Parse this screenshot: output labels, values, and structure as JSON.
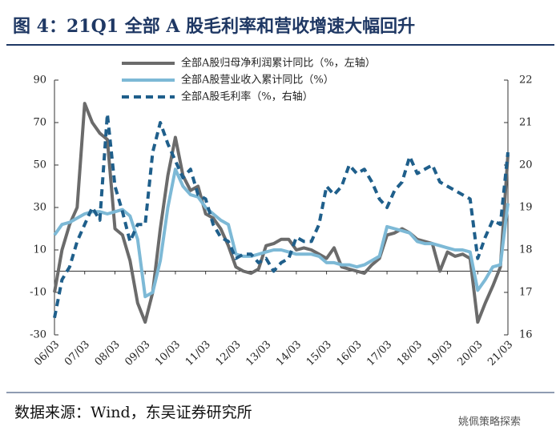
{
  "chart_data": {
    "type": "line",
    "title": "图 4：21Q1 全部 A 股毛利率和营收增速大幅回升",
    "source": "数据来源：Wind，东吴证券研究所",
    "watermark": "姚佩策略探索",
    "categories": [
      "06/03",
      null,
      null,
      null,
      "07/03",
      null,
      null,
      null,
      "08/03",
      null,
      null,
      null,
      "09/03",
      null,
      null,
      null,
      "10/03",
      null,
      null,
      null,
      "11/03",
      null,
      null,
      null,
      "12/03",
      null,
      null,
      null,
      "13/03",
      null,
      null,
      null,
      "14/03",
      null,
      null,
      null,
      "15/03",
      null,
      null,
      null,
      "16/03",
      null,
      null,
      null,
      "17/03",
      null,
      null,
      null,
      "18/03",
      null,
      null,
      null,
      "19/03",
      null,
      null,
      null,
      "20/03",
      null,
      null,
      null,
      "21/03"
    ],
    "ylim": [
      -30,
      90
    ],
    "yticks": [
      -30,
      -10,
      10,
      30,
      50,
      70,
      90
    ],
    "y2lim": [
      16,
      22
    ],
    "y2ticks": [
      16,
      17,
      18,
      19,
      20,
      21,
      22
    ],
    "series": [
      {
        "name": "全部A股归母净利润累计同比（%，左轴）",
        "color": "#6b6b6b",
        "dash": false,
        "values": [
          -10,
          10,
          22,
          30,
          79,
          70,
          65,
          62,
          20,
          17,
          5,
          -15,
          -24,
          -10,
          20,
          45,
          63,
          45,
          38,
          40,
          27,
          25,
          20,
          12,
          2,
          0,
          -1,
          1,
          12,
          13,
          15,
          15,
          10,
          11,
          10,
          8,
          6,
          11,
          2,
          1,
          0,
          -1,
          3,
          6,
          17,
          18,
          20,
          18,
          15,
          14,
          13,
          0,
          9,
          7,
          8,
          6,
          -24,
          -15,
          -7,
          2,
          55
        ]
      },
      {
        "name": "全部A股营业收入累计同比（%）",
        "color": "#7db9d6",
        "dash": false,
        "values": [
          17,
          22,
          23,
          25,
          27,
          28,
          28,
          27,
          28,
          29,
          26,
          15,
          -12,
          -10,
          5,
          30,
          48,
          40,
          36,
          35,
          30,
          27,
          24,
          22,
          8,
          7,
          7,
          8,
          9,
          10,
          10,
          9,
          8,
          8,
          8,
          7,
          4,
          4,
          3,
          3,
          2,
          3,
          5,
          7,
          21,
          20,
          19,
          18,
          14,
          13,
          13,
          12,
          11,
          10,
          10,
          9,
          -9,
          -4,
          2,
          3,
          32
        ]
      },
      {
        "name": "全部A股毛利率（%，右轴）",
        "color": "#1f5f8b",
        "dash": true,
        "axis": "y2",
        "values": [
          16.4,
          17.3,
          17.6,
          18.2,
          18.6,
          19.0,
          18.7,
          21.2,
          19.5,
          18.9,
          18.2,
          18.6,
          18.6,
          20.3,
          21.0,
          20.5,
          20.1,
          19.7,
          19.9,
          19.3,
          19.2,
          18.6,
          18.3,
          18.2,
          17.8,
          17.9,
          17.9,
          17.7,
          17.8,
          17.5,
          17.7,
          17.8,
          18.3,
          18.2,
          18.2,
          18.6,
          19.5,
          19.3,
          19.5,
          20.0,
          19.8,
          19.9,
          19.6,
          19.2,
          19.0,
          19.4,
          19.6,
          20.2,
          19.8,
          19.9,
          20.0,
          19.6,
          19.5,
          19.4,
          19.3,
          19.2,
          17.8,
          18.3,
          18.7,
          18.6,
          20.3
        ]
      }
    ]
  }
}
